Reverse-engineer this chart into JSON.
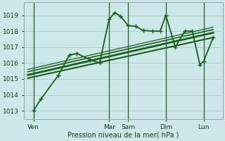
{
  "background_color": "#cce8e8",
  "grid_color": "#aacccc",
  "line_color": "#1a5e1a",
  "vline_color": "#2d5a2d",
  "xlabel": "Pression niveau de la mer( hPa )",
  "ylim": [
    1012.5,
    1019.8
  ],
  "yticks": [
    1013,
    1014,
    1015,
    1016,
    1017,
    1018,
    1019
  ],
  "xtick_labels": [
    "Ven",
    "",
    "Mar",
    "Sam",
    "",
    "Dim",
    "",
    "Lun"
  ],
  "xtick_positions": [
    0,
    2,
    4,
    5,
    6,
    7,
    8,
    9
  ],
  "vline_positions": [
    0,
    4,
    5,
    7,
    9
  ],
  "xlim": [
    -0.5,
    10.0
  ],
  "jagged": {
    "x": [
      0,
      0.4,
      1.3,
      1.9,
      2.3,
      3.0,
      3.5,
      4.0,
      4.3,
      4.6,
      5.0,
      5.4,
      5.8,
      6.3,
      6.7,
      7.0,
      7.5,
      8.0,
      8.4,
      8.8,
      9.0,
      9.5
    ],
    "y": [
      1013.0,
      1013.75,
      1015.2,
      1016.5,
      1016.6,
      1016.2,
      1016.0,
      1018.75,
      1019.15,
      1018.95,
      1018.35,
      1018.3,
      1018.05,
      1018.0,
      1018.0,
      1019.0,
      1017.0,
      1018.0,
      1018.0,
      1015.9,
      1016.1,
      1017.6
    ],
    "lw": 1.3,
    "marker": "+"
  },
  "trend_lines": [
    {
      "x": [
        -0.3,
        9.5
      ],
      "y": [
        1015.25,
        1017.9
      ],
      "lw": 2.0
    },
    {
      "x": [
        -0.3,
        9.5
      ],
      "y": [
        1015.05,
        1017.6
      ],
      "lw": 1.5
    },
    {
      "x": [
        -0.3,
        9.5
      ],
      "y": [
        1015.45,
        1018.1
      ],
      "lw": 1.2
    },
    {
      "x": [
        -0.3,
        9.5
      ],
      "y": [
        1015.6,
        1018.25
      ],
      "lw": 0.9
    }
  ]
}
